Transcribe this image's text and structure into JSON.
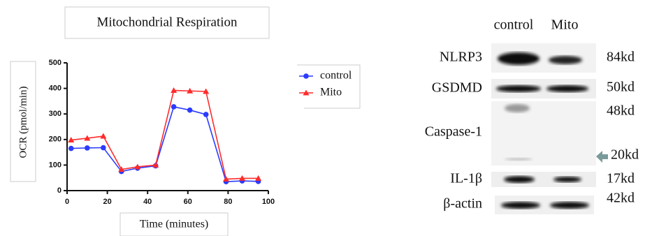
{
  "chart_data": {
    "type": "line",
    "title": "Mitochondrial Respiration",
    "x_label": "Time (minutes)",
    "y_label": "OCR (pmol/min)",
    "x": [
      2,
      10,
      18,
      27,
      35,
      44,
      53,
      61,
      69,
      79,
      87,
      95
    ],
    "series": [
      {
        "name": "control",
        "color": "#2b3bff",
        "marker": "circle",
        "values": [
          165,
          167,
          168,
          75,
          88,
          97,
          328,
          315,
          298,
          35,
          38,
          36
        ]
      },
      {
        "name": "Mito",
        "color": "#ff2b2b",
        "marker": "triangle",
        "values": [
          198,
          205,
          213,
          83,
          93,
          100,
          392,
          390,
          388,
          45,
          48,
          48
        ]
      }
    ],
    "xlim": [
      0,
      100
    ],
    "xticks": [
      0,
      20,
      40,
      60,
      80,
      100
    ],
    "ylim": [
      0,
      500
    ],
    "yticks": [
      0,
      100,
      200,
      300,
      400,
      500
    ],
    "grid": false,
    "legend": "right"
  },
  "blot": {
    "columns": [
      "control",
      "Mito"
    ],
    "rows": [
      {
        "label": "NLRP3",
        "sizes": [
          "84kd"
        ]
      },
      {
        "label": "GSDMD",
        "sizes": [
          "50kd"
        ]
      },
      {
        "label": "Caspase-1",
        "sizes": [
          "48kd",
          "20kd"
        ]
      },
      {
        "label": "IL-1β",
        "sizes": [
          "17kd"
        ]
      },
      {
        "label": "β-actin",
        "sizes": [
          "42kd"
        ]
      }
    ]
  }
}
